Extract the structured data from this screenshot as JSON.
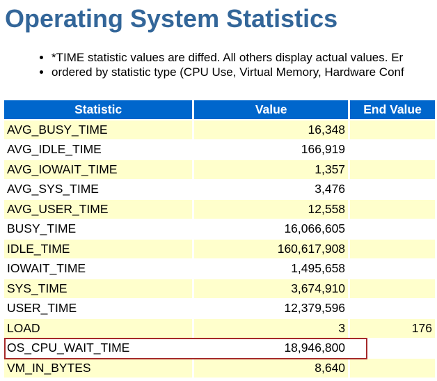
{
  "title": "Operating System Statistics",
  "notes": [
    "*TIME statistic values are diffed. All others display actual values. Er",
    "ordered by statistic type (CPU Use, Virtual Memory, Hardware Conf"
  ],
  "table": {
    "headers": [
      "Statistic",
      "Value",
      "End Value"
    ],
    "rows": [
      {
        "statistic": "AVG_BUSY_TIME",
        "value": "16,348",
        "end_value": ""
      },
      {
        "statistic": "AVG_IDLE_TIME",
        "value": "166,919",
        "end_value": ""
      },
      {
        "statistic": "AVG_IOWAIT_TIME",
        "value": "1,357",
        "end_value": ""
      },
      {
        "statistic": "AVG_SYS_TIME",
        "value": "3,476",
        "end_value": ""
      },
      {
        "statistic": "AVG_USER_TIME",
        "value": "12,558",
        "end_value": ""
      },
      {
        "statistic": "BUSY_TIME",
        "value": "16,066,605",
        "end_value": ""
      },
      {
        "statistic": "IDLE_TIME",
        "value": "160,617,908",
        "end_value": ""
      },
      {
        "statistic": "IOWAIT_TIME",
        "value": "1,495,658",
        "end_value": ""
      },
      {
        "statistic": "SYS_TIME",
        "value": "3,674,910",
        "end_value": ""
      },
      {
        "statistic": "USER_TIME",
        "value": "12,379,596",
        "end_value": ""
      },
      {
        "statistic": "LOAD",
        "value": "3",
        "end_value": "176"
      },
      {
        "statistic": "OS_CPU_WAIT_TIME",
        "value": "18,946,800",
        "end_value": ""
      },
      {
        "statistic": "VM_IN_BYTES",
        "value": "8,640",
        "end_value": ""
      }
    ],
    "highlighted_row": "OS_CPU_WAIT_TIME"
  },
  "colors": {
    "title": "#336699",
    "header_bg": "#0066cc",
    "row_alt": "#ffffcc",
    "highlight_border": "#a52a2a"
  }
}
